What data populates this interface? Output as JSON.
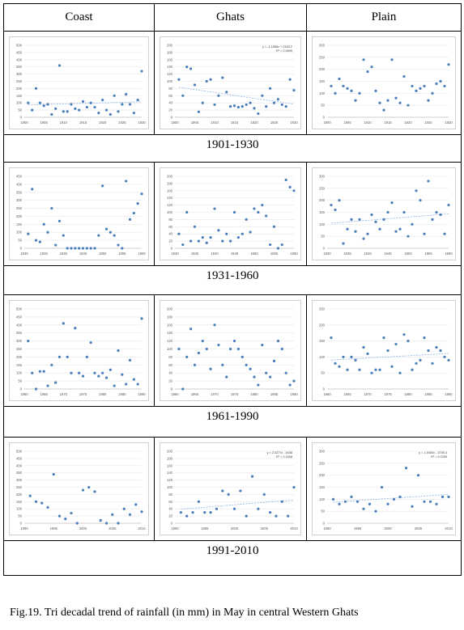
{
  "headers": [
    "Coast",
    "Ghats",
    "Plain"
  ],
  "periods": [
    "1901-1930",
    "1931-1960",
    "1961-1990",
    "1991-2010"
  ],
  "caption": "Fig.19. Tri decadal trend of rainfall (in mm) in May in central Western Ghats",
  "colors": {
    "marker": "#4a7ebb",
    "trend": "#8db3e2",
    "grid": "#e6e6e6",
    "axis": "#bfbfbf",
    "tick_text": "#595959"
  },
  "chart_data": [
    {
      "type": "scatter",
      "region": "Coast",
      "period": "1901-1930",
      "trendline": true,
      "grid": true,
      "xlim": [
        1900,
        1930
      ],
      "ylim": [
        0,
        500
      ],
      "xticks": [
        1900,
        1905,
        1910,
        1915,
        1920,
        1925,
        1930
      ],
      "yticks": [
        0,
        50,
        100,
        150,
        200,
        250,
        300,
        350,
        400,
        450,
        500
      ],
      "x": [
        1901,
        1902,
        1903,
        1904,
        1905,
        1906,
        1907,
        1908,
        1909,
        1910,
        1911,
        1912,
        1913,
        1914,
        1915,
        1916,
        1917,
        1918,
        1919,
        1920,
        1921,
        1922,
        1923,
        1924,
        1925,
        1926,
        1927,
        1928,
        1929,
        1930
      ],
      "y": [
        100,
        50,
        200,
        100,
        80,
        90,
        20,
        60,
        360,
        40,
        40,
        90,
        60,
        50,
        110,
        70,
        100,
        70,
        30,
        120,
        50,
        20,
        150,
        40,
        90,
        160,
        90,
        30,
        120,
        320
      ]
    },
    {
      "type": "scatter",
      "region": "Ghats",
      "period": "1901-1930",
      "trendline": true,
      "grid": true,
      "equation": "y = -1.1086x + 2163.2",
      "r2": "R² = 0.0695",
      "xlim": [
        1900,
        1930
      ],
      "ylim": [
        0,
        200
      ],
      "xticks": [
        1900,
        1905,
        1910,
        1915,
        1920,
        1925,
        1930
      ],
      "yticks": [
        0,
        20,
        40,
        60,
        80,
        100,
        120,
        140,
        160,
        180,
        200
      ],
      "x": [
        1901,
        1902,
        1903,
        1904,
        1905,
        1906,
        1907,
        1908,
        1909,
        1910,
        1911,
        1912,
        1913,
        1914,
        1915,
        1916,
        1917,
        1918,
        1919,
        1920,
        1921,
        1922,
        1923,
        1924,
        1925,
        1926,
        1927,
        1928,
        1929,
        1930
      ],
      "y": [
        105,
        60,
        140,
        135,
        90,
        15,
        40,
        100,
        105,
        35,
        60,
        110,
        70,
        30,
        32,
        28,
        30,
        35,
        40,
        25,
        10,
        60,
        30,
        80,
        40,
        50,
        35,
        30,
        105,
        75
      ]
    },
    {
      "type": "scatter",
      "region": "Plain",
      "period": "1901-1930",
      "trendline": false,
      "grid": true,
      "xlim": [
        1900,
        1930
      ],
      "ylim": [
        0,
        300
      ],
      "xticks": [
        1900,
        1905,
        1910,
        1915,
        1920,
        1925,
        1930
      ],
      "yticks": [
        0,
        50,
        100,
        150,
        200,
        250,
        300
      ],
      "x": [
        1901,
        1902,
        1903,
        1904,
        1905,
        1906,
        1907,
        1908,
        1909,
        1910,
        1911,
        1912,
        1913,
        1914,
        1915,
        1916,
        1917,
        1918,
        1919,
        1920,
        1921,
        1922,
        1923,
        1924,
        1925,
        1926,
        1927,
        1928,
        1929,
        1930
      ],
      "y": [
        130,
        100,
        160,
        130,
        120,
        110,
        70,
        100,
        240,
        190,
        210,
        110,
        60,
        30,
        70,
        240,
        80,
        60,
        170,
        50,
        130,
        110,
        120,
        130,
        70,
        100,
        140,
        150,
        130,
        220
      ]
    },
    {
      "type": "scatter",
      "region": "Coast",
      "period": "1931-1960",
      "trendline": false,
      "grid": true,
      "xlim": [
        1930,
        1960
      ],
      "ylim": [
        0,
        450
      ],
      "xticks": [
        1930,
        1935,
        1940,
        1945,
        1950,
        1955,
        1960
      ],
      "yticks": [
        0,
        50,
        100,
        150,
        200,
        250,
        300,
        350,
        400,
        450
      ],
      "x": [
        1931,
        1932,
        1933,
        1934,
        1935,
        1936,
        1937,
        1938,
        1939,
        1940,
        1941,
        1942,
        1943,
        1944,
        1945,
        1946,
        1947,
        1948,
        1949,
        1950,
        1951,
        1952,
        1953,
        1954,
        1955,
        1956,
        1957,
        1958,
        1959,
        1960
      ],
      "y": [
        90,
        370,
        50,
        40,
        150,
        100,
        250,
        20,
        170,
        80,
        0,
        0,
        0,
        0,
        0,
        0,
        0,
        0,
        80,
        390,
        120,
        100,
        80,
        20,
        0,
        420,
        180,
        220,
        280,
        340
      ]
    },
    {
      "type": "scatter",
      "region": "Ghats",
      "period": "1931-1960",
      "trendline": false,
      "grid": true,
      "xlim": [
        1930,
        1960
      ],
      "ylim": [
        0,
        200
      ],
      "xticks": [
        1930,
        1935,
        1940,
        1945,
        1950,
        1955,
        1960
      ],
      "yticks": [
        0,
        20,
        40,
        60,
        80,
        100,
        120,
        140,
        160,
        180,
        200
      ],
      "x": [
        1931,
        1932,
        1933,
        1934,
        1935,
        1936,
        1937,
        1938,
        1939,
        1940,
        1941,
        1942,
        1943,
        1944,
        1945,
        1946,
        1947,
        1948,
        1949,
        1950,
        1951,
        1952,
        1953,
        1954,
        1955,
        1956,
        1957,
        1958,
        1959,
        1960
      ],
      "y": [
        40,
        10,
        100,
        20,
        60,
        20,
        30,
        15,
        30,
        110,
        50,
        20,
        40,
        20,
        100,
        30,
        40,
        80,
        45,
        110,
        100,
        120,
        90,
        10,
        60,
        0,
        10,
        190,
        170,
        160
      ]
    },
    {
      "type": "scatter",
      "region": "Plain",
      "period": "1931-1960",
      "trendline": true,
      "grid": true,
      "xlim": [
        1930,
        1960
      ],
      "ylim": [
        0,
        300
      ],
      "xticks": [
        1930,
        1935,
        1940,
        1945,
        1950,
        1955,
        1960
      ],
      "yticks": [
        0,
        50,
        100,
        150,
        200,
        250,
        300
      ],
      "x": [
        1931,
        1932,
        1933,
        1934,
        1935,
        1936,
        1937,
        1938,
        1939,
        1940,
        1941,
        1942,
        1943,
        1944,
        1945,
        1946,
        1947,
        1948,
        1949,
        1950,
        1951,
        1952,
        1953,
        1954,
        1955,
        1956,
        1957,
        1958,
        1959,
        1960
      ],
      "y": [
        180,
        160,
        200,
        20,
        80,
        120,
        70,
        120,
        40,
        60,
        140,
        110,
        80,
        120,
        150,
        190,
        70,
        80,
        150,
        50,
        100,
        240,
        200,
        60,
        280,
        120,
        150,
        140,
        60,
        180
      ]
    },
    {
      "type": "scatter",
      "region": "Coast",
      "period": "1961-1990",
      "trendline": false,
      "grid": true,
      "xlim": [
        1960,
        1990
      ],
      "ylim": [
        0,
        500
      ],
      "xticks": [
        1960,
        1965,
        1970,
        1975,
        1980,
        1985,
        1990
      ],
      "yticks": [
        0,
        50,
        100,
        150,
        200,
        250,
        300,
        350,
        400,
        450,
        500
      ],
      "x": [
        1961,
        1962,
        1963,
        1964,
        1965,
        1966,
        1967,
        1968,
        1969,
        1970,
        1971,
        1972,
        1973,
        1974,
        1975,
        1976,
        1977,
        1978,
        1979,
        1980,
        1981,
        1982,
        1983,
        1984,
        1985,
        1986,
        1987,
        1988,
        1989,
        1990
      ],
      "y": [
        300,
        100,
        0,
        110,
        110,
        20,
        150,
        40,
        200,
        410,
        200,
        100,
        380,
        100,
        80,
        200,
        290,
        100,
        80,
        100,
        70,
        120,
        20,
        240,
        90,
        30,
        180,
        60,
        30,
        440
      ]
    },
    {
      "type": "scatter",
      "region": "Ghats",
      "period": "1961-1990",
      "trendline": false,
      "grid": true,
      "xlim": [
        1960,
        1990
      ],
      "ylim": [
        0,
        200
      ],
      "xticks": [
        1960,
        1965,
        1970,
        1975,
        1980,
        1985,
        1990
      ],
      "yticks": [
        0,
        20,
        40,
        60,
        80,
        100,
        120,
        140,
        160,
        180,
        200
      ],
      "x": [
        1961,
        1962,
        1963,
        1964,
        1965,
        1966,
        1967,
        1968,
        1969,
        1970,
        1971,
        1972,
        1973,
        1974,
        1975,
        1976,
        1977,
        1978,
        1979,
        1980,
        1981,
        1982,
        1983,
        1984,
        1985,
        1986,
        1987,
        1988,
        1989,
        1990
      ],
      "y": [
        100,
        0,
        80,
        150,
        60,
        90,
        120,
        100,
        50,
        160,
        110,
        60,
        30,
        100,
        120,
        100,
        80,
        60,
        50,
        30,
        10,
        110,
        40,
        30,
        70,
        120,
        100,
        40,
        10,
        20
      ]
    },
    {
      "type": "scatter",
      "region": "Plain",
      "period": "1961-1990",
      "trendline": true,
      "grid": true,
      "xlim": [
        1960,
        1990
      ],
      "ylim": [
        0,
        250
      ],
      "xticks": [
        1960,
        1965,
        1970,
        1975,
        1980,
        1985,
        1990
      ],
      "yticks": [
        0,
        50,
        100,
        150,
        200,
        250
      ],
      "x": [
        1961,
        1962,
        1963,
        1964,
        1965,
        1966,
        1967,
        1968,
        1969,
        1970,
        1971,
        1972,
        1973,
        1974,
        1975,
        1976,
        1977,
        1978,
        1979,
        1980,
        1981,
        1982,
        1983,
        1984,
        1985,
        1986,
        1987,
        1988,
        1989,
        1990
      ],
      "y": [
        160,
        80,
        70,
        100,
        60,
        100,
        90,
        60,
        130,
        110,
        50,
        60,
        60,
        160,
        120,
        70,
        140,
        50,
        170,
        150,
        60,
        80,
        90,
        160,
        120,
        80,
        130,
        120,
        100,
        90
      ]
    },
    {
      "type": "scatter",
      "region": "Coast",
      "period": "1991-2010",
      "trendline": false,
      "grid": true,
      "xlim": [
        1990,
        2010
      ],
      "ylim": [
        0,
        500
      ],
      "xticks": [
        1990,
        1995,
        2000,
        2005,
        2010
      ],
      "yticks": [
        0,
        50,
        100,
        150,
        200,
        250,
        300,
        350,
        400,
        450,
        500
      ],
      "x": [
        1991,
        1992,
        1993,
        1994,
        1995,
        1996,
        1997,
        1998,
        1999,
        2000,
        2001,
        2002,
        2003,
        2004,
        2005,
        2006,
        2007,
        2008,
        2009,
        2010
      ],
      "y": [
        190,
        150,
        140,
        110,
        340,
        50,
        30,
        70,
        0,
        230,
        250,
        220,
        20,
        0,
        60,
        0,
        100,
        60,
        130,
        80
      ]
    },
    {
      "type": "scatter",
      "region": "Ghats",
      "period": "1991-2010",
      "trendline": true,
      "grid": true,
      "equation": "y = 2.0277x - 4036",
      "r2": "R² = 0.1608",
      "xlim": [
        1990,
        2010
      ],
      "ylim": [
        0,
        200
      ],
      "xticks": [
        1990,
        1995,
        2000,
        2005,
        2010
      ],
      "yticks": [
        0,
        20,
        40,
        60,
        80,
        100,
        120,
        140,
        160,
        180,
        200
      ],
      "x": [
        1991,
        1992,
        1993,
        1994,
        1995,
        1996,
        1997,
        1998,
        1999,
        2000,
        2001,
        2002,
        2003,
        2004,
        2005,
        2006,
        2007,
        2008,
        2009,
        2010
      ],
      "y": [
        30,
        20,
        30,
        60,
        30,
        30,
        40,
        90,
        80,
        40,
        90,
        20,
        130,
        40,
        80,
        30,
        20,
        60,
        20,
        100
      ]
    },
    {
      "type": "scatter",
      "region": "Plain",
      "period": "1991-2010",
      "trendline": true,
      "grid": true,
      "equation": "y = 1.9409x - 3759.4",
      "r2": "R² = 0.0269",
      "xlim": [
        1990,
        2010
      ],
      "ylim": [
        0,
        300
      ],
      "xticks": [
        1990,
        1995,
        2000,
        2005,
        2010
      ],
      "yticks": [
        0,
        50,
        100,
        150,
        200,
        250,
        300
      ],
      "x": [
        1991,
        1992,
        1993,
        1994,
        1995,
        1996,
        1997,
        1998,
        1999,
        2000,
        2001,
        2002,
        2003,
        2004,
        2005,
        2006,
        2007,
        2008,
        2009,
        2010
      ],
      "y": [
        100,
        80,
        90,
        110,
        90,
        60,
        80,
        50,
        150,
        80,
        100,
        110,
        230,
        70,
        200,
        90,
        90,
        80,
        110,
        110
      ]
    }
  ]
}
